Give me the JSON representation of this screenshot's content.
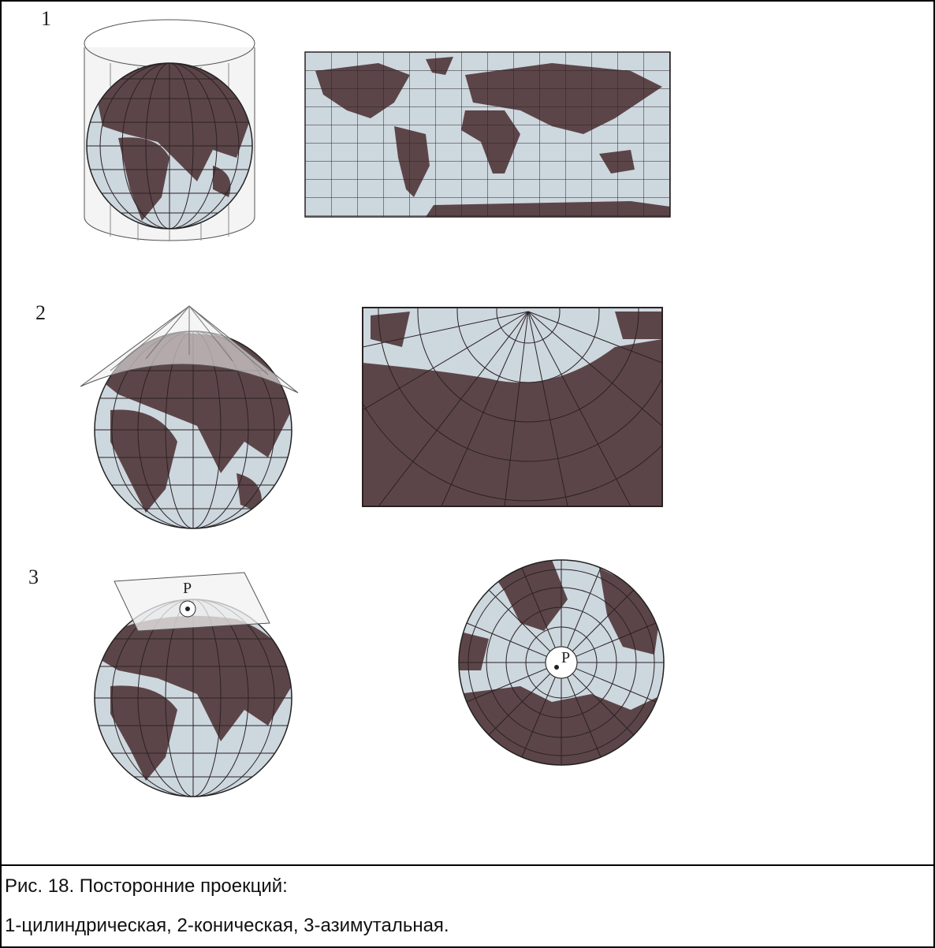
{
  "figure": {
    "panels": [
      {
        "number": "1"
      },
      {
        "number": "2"
      },
      {
        "number": "3",
        "pole_labels": [
          "P",
          "P"
        ]
      }
    ]
  },
  "caption": {
    "lines": [
      "Рис. 18. Посторонние проекций:",
      "1-цилиндрическая, 2-коническая, 3-азимутальная."
    ]
  }
}
